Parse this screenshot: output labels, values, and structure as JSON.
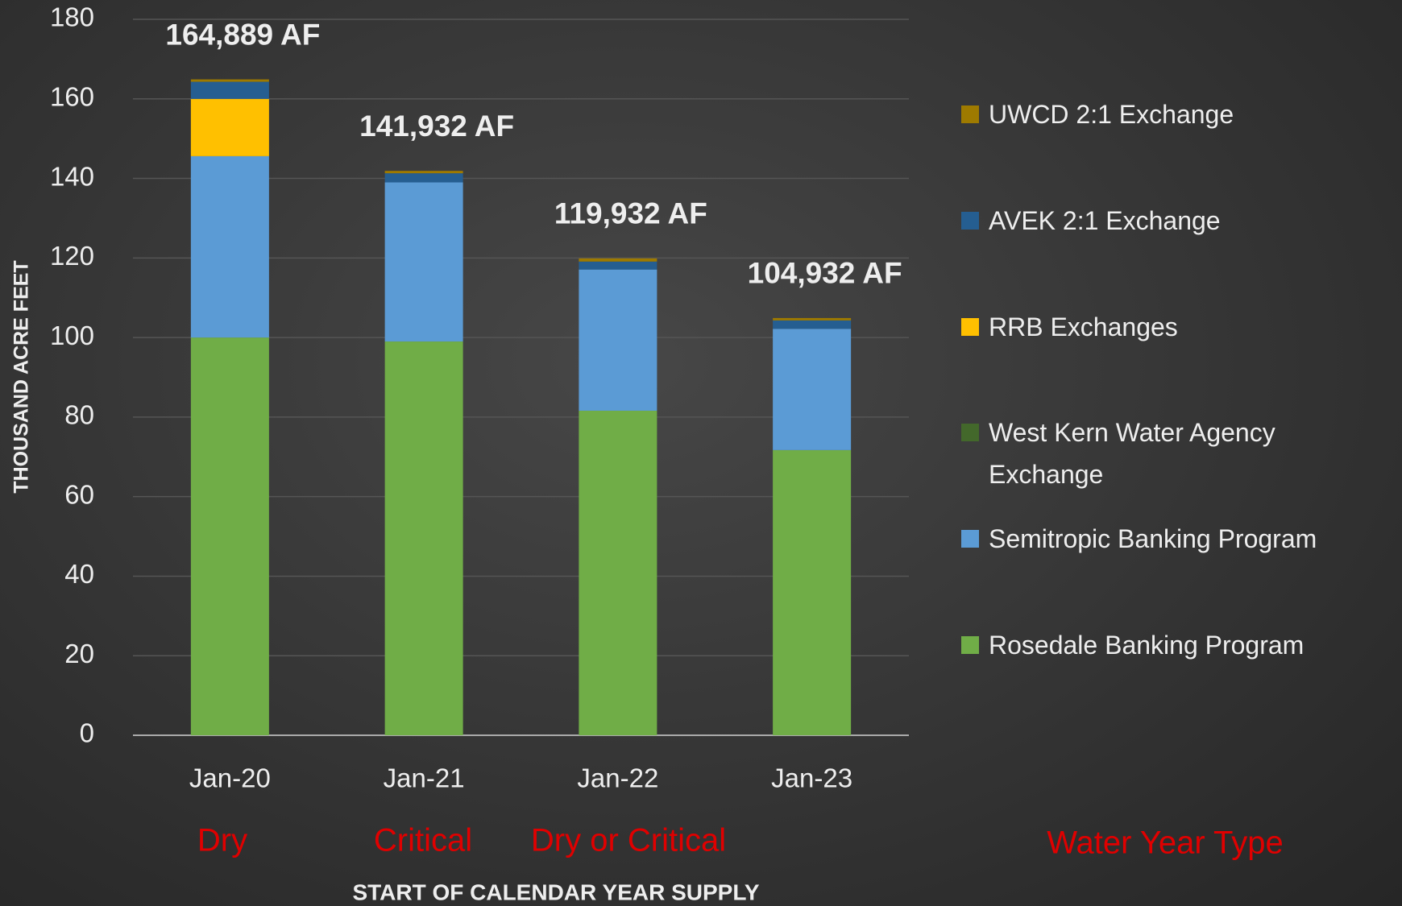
{
  "chart_data": {
    "type": "stacked_bar",
    "y_label": "THOUSAND ACRE FEET",
    "x_label": "START OF CALENDAR YEAR SUPPLY",
    "categories": [
      "Jan-20",
      "Jan-21",
      "Jan-22",
      "Jan-23"
    ],
    "series": [
      {
        "name": "Rosedale Banking Program",
        "color": "#70ad47",
        "values": [
          100,
          99,
          81.6,
          71.7
        ]
      },
      {
        "name": "Semitropic Banking Program",
        "color": "#5b9bd5",
        "values": [
          45.6,
          40,
          35.5,
          30.5
        ]
      },
      {
        "name": "West Kern Water Agency Exchange",
        "color": "#43682b",
        "values": [
          0,
          0,
          0,
          0
        ]
      },
      {
        "name": "RRB Exchanges",
        "color": "#ffc000",
        "values": [
          14.4,
          0,
          0,
          0
        ]
      },
      {
        "name": "AVEK 2:1 Exchange",
        "color": "#255e91",
        "values": [
          4.3,
          2.3,
          2.0,
          2.1
        ]
      },
      {
        "name": "UWCD 2:1 Exchange",
        "color": "#9e7a00",
        "values": [
          0.6,
          0.6,
          0.8,
          0.6
        ]
      }
    ],
    "total_labels": [
      "164,889 AF",
      "141,932 AF",
      "119,932 AF",
      "104,932 AF"
    ],
    "water_year_types": [
      "Dry",
      "Critical",
      "Dry or Critical"
    ],
    "water_year_legend": "Water Year Type",
    "ylim": [
      0,
      180
    ],
    "yticks": [
      0,
      20,
      40,
      60,
      80,
      100,
      120,
      140,
      160,
      180
    ],
    "grid": true
  }
}
